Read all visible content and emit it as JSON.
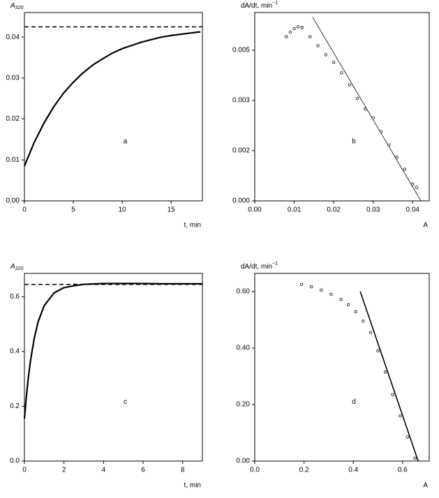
{
  "chart_data": [
    {
      "type": "line",
      "panel": "a",
      "ylabel": "A",
      "ylabel_subscript": "320",
      "xlabel": "t, min",
      "xlim": [
        0,
        18.2
      ],
      "xticks": [
        0,
        5,
        10,
        15
      ],
      "ylim": [
        0,
        0.046
      ],
      "yticks": [
        {
          "value": 0,
          "label": "0.00"
        },
        0.01,
        0.02,
        0.03,
        0.04
      ],
      "hline": 0.0425,
      "series": [
        {
          "color": "#000000",
          "x": [
            0,
            1,
            2,
            3,
            4,
            5,
            6,
            7,
            8,
            9,
            10,
            11,
            12,
            13,
            14,
            15,
            16,
            17,
            18
          ],
          "values": [
            0.0085,
            0.0143,
            0.019,
            0.023,
            0.0263,
            0.029,
            0.0313,
            0.0332,
            0.0347,
            0.0361,
            0.0372,
            0.038,
            0.0388,
            0.0394,
            0.04,
            0.0404,
            0.0407,
            0.041,
            0.0413
          ]
        }
      ]
    },
    {
      "type": "scatter",
      "panel": "b",
      "ylabel": "dA/dt, min",
      "ylabel_superscript": "−1",
      "xlabel": "A",
      "xlim": [
        0,
        0.0442
      ],
      "xticks": [
        {
          "value": 0,
          "label": "0.00"
        },
        0.01,
        0.02,
        0.03,
        0.04
      ],
      "ylim": [
        0,
        0.00625
      ],
      "yticks": [
        {
          "value": 0,
          "label": "0.000"
        },
        {
          "value": 0.001667,
          "label": "0.002"
        },
        {
          "value": 0.003333,
          "label": "0.003"
        },
        0.005
      ],
      "fit_line": {
        "x": [
          0.0147,
          0.0421
        ],
        "y": [
          0.00609,
          0
        ]
      },
      "series": [
        {
          "color": "#000000",
          "x": [
            0.008,
            0.009,
            0.01,
            0.011,
            0.012,
            0.014,
            0.016,
            0.018,
            0.02,
            0.022,
            0.024,
            0.026,
            0.028,
            0.03,
            0.032,
            0.034,
            0.036,
            0.038,
            0.04,
            0.041
          ],
          "values": [
            0.00545,
            0.0056,
            0.00572,
            0.00578,
            0.00575,
            0.00545,
            0.00515,
            0.00485,
            0.0046,
            0.00425,
            0.00385,
            0.0034,
            0.00305,
            0.00275,
            0.0023,
            0.00185,
            0.00145,
            0.00105,
            0.00055,
            0.00045
          ]
        }
      ]
    },
    {
      "type": "line",
      "panel": "c",
      "ylabel": "A",
      "ylabel_subscript": "320",
      "xlabel": "t, min",
      "xlim": [
        0,
        9
      ],
      "xticks": [
        0,
        2,
        4,
        6,
        8
      ],
      "ylim": [
        0,
        0.685
      ],
      "yticks": [
        {
          "value": 0,
          "label": "0.0"
        },
        0.2,
        0.4,
        0.6
      ],
      "hline": 0.645,
      "series": [
        {
          "color": "#000000",
          "x": [
            0,
            0.1,
            0.2,
            0.3,
            0.5,
            0.7,
            1,
            1.5,
            2,
            2.5,
            3,
            4,
            5,
            6,
            7,
            8,
            9
          ],
          "values": [
            0.155,
            0.237,
            0.306,
            0.363,
            0.45,
            0.51,
            0.567,
            0.614,
            0.633,
            0.64,
            0.645,
            0.648,
            0.648,
            0.648,
            0.647,
            0.647,
            0.647
          ]
        }
      ]
    },
    {
      "type": "scatter",
      "panel": "d",
      "ylabel": "dA/dt, min",
      "ylabel_superscript": "−1",
      "xlabel": "A",
      "xlim": [
        0,
        0.708
      ],
      "xticks": [
        {
          "value": 0,
          "label": "0.0"
        },
        0.2,
        0.4,
        0.6
      ],
      "ylim": [
        0,
        0.664
      ],
      "yticks": [
        {
          "value": 0,
          "label": "0.00"
        },
        {
          "value": 0.2,
          "label": "0.20"
        },
        {
          "value": 0.4,
          "label": "0.40"
        },
        {
          "value": 0.6,
          "label": "0.60"
        }
      ],
      "fit_line": {
        "x": [
          0.428,
          0.663
        ],
        "y": [
          0.6,
          0
        ]
      },
      "series": [
        {
          "color": "#000000",
          "x": [
            0.19,
            0.23,
            0.27,
            0.31,
            0.35,
            0.38,
            0.41,
            0.44,
            0.47,
            0.5,
            0.53,
            0.56,
            0.59,
            0.62,
            0.65
          ],
          "values": [
            0.625,
            0.617,
            0.605,
            0.59,
            0.572,
            0.553,
            0.528,
            0.495,
            0.455,
            0.39,
            0.315,
            0.235,
            0.16,
            0.085,
            0.01
          ]
        }
      ]
    }
  ]
}
